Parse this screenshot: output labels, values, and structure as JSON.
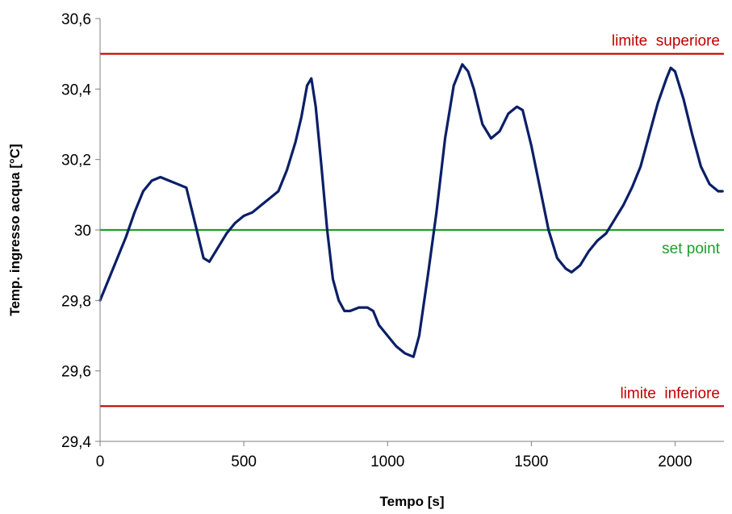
{
  "chart_data": {
    "type": "line",
    "xlabel": "Tempo [s]",
    "ylabel": "Temp. ingresso acqua [°C]",
    "xlim": [
      0,
      2170
    ],
    "ylim": [
      29.4,
      30.6
    ],
    "grid": false,
    "x_ticks": [
      0,
      500,
      1000,
      1500,
      2000
    ],
    "x_tick_labels": [
      "0",
      "500",
      "1000",
      "1500",
      "2000"
    ],
    "y_ticks": [
      29.4,
      29.6,
      29.8,
      30.0,
      30.2,
      30.4,
      30.6
    ],
    "y_tick_labels": [
      "29,4",
      "29,6",
      "29,8",
      "30",
      "30,2",
      "30,4",
      "30,6"
    ],
    "reference_lines": [
      {
        "label": "limite  superiore",
        "y": 30.5,
        "color": "#c00000"
      },
      {
        "label": "set point",
        "y": 30.0,
        "color": "#1e9e2e"
      },
      {
        "label": "limite  inferiore",
        "y": 29.5,
        "color": "#c00000"
      }
    ],
    "series": [
      {
        "color": "#0b1f66",
        "x": [
          0,
          30,
          60,
          90,
          120,
          150,
          180,
          210,
          240,
          270,
          300,
          330,
          360,
          380,
          410,
          440,
          470,
          500,
          530,
          560,
          590,
          620,
          650,
          680,
          700,
          720,
          735,
          750,
          770,
          790,
          810,
          830,
          850,
          870,
          900,
          930,
          950,
          970,
          1000,
          1030,
          1060,
          1090,
          1110,
          1140,
          1170,
          1200,
          1230,
          1260,
          1280,
          1300,
          1330,
          1360,
          1390,
          1420,
          1450,
          1470,
          1500,
          1530,
          1560,
          1590,
          1620,
          1640,
          1670,
          1700,
          1730,
          1760,
          1790,
          1820,
          1850,
          1880,
          1910,
          1940,
          1970,
          1985,
          2000,
          2030,
          2060,
          2090,
          2120,
          2150,
          2165
        ],
        "y": [
          29.8,
          29.86,
          29.92,
          29.98,
          30.05,
          30.11,
          30.14,
          30.15,
          30.14,
          30.13,
          30.12,
          30.02,
          29.92,
          29.91,
          29.95,
          29.99,
          30.02,
          30.04,
          30.05,
          30.07,
          30.09,
          30.11,
          30.17,
          30.25,
          30.32,
          30.41,
          30.43,
          30.35,
          30.18,
          30.0,
          29.86,
          29.8,
          29.77,
          29.77,
          29.78,
          29.78,
          29.77,
          29.73,
          29.7,
          29.67,
          29.65,
          29.64,
          29.7,
          29.87,
          30.05,
          30.26,
          30.41,
          30.47,
          30.45,
          30.4,
          30.3,
          30.26,
          30.28,
          30.33,
          30.35,
          30.34,
          30.24,
          30.12,
          30.0,
          29.92,
          29.89,
          29.88,
          29.9,
          29.94,
          29.97,
          29.99,
          30.03,
          30.07,
          30.12,
          30.18,
          30.27,
          30.36,
          30.43,
          30.46,
          30.45,
          30.37,
          30.27,
          30.18,
          30.13,
          30.11,
          30.11
        ]
      }
    ]
  }
}
